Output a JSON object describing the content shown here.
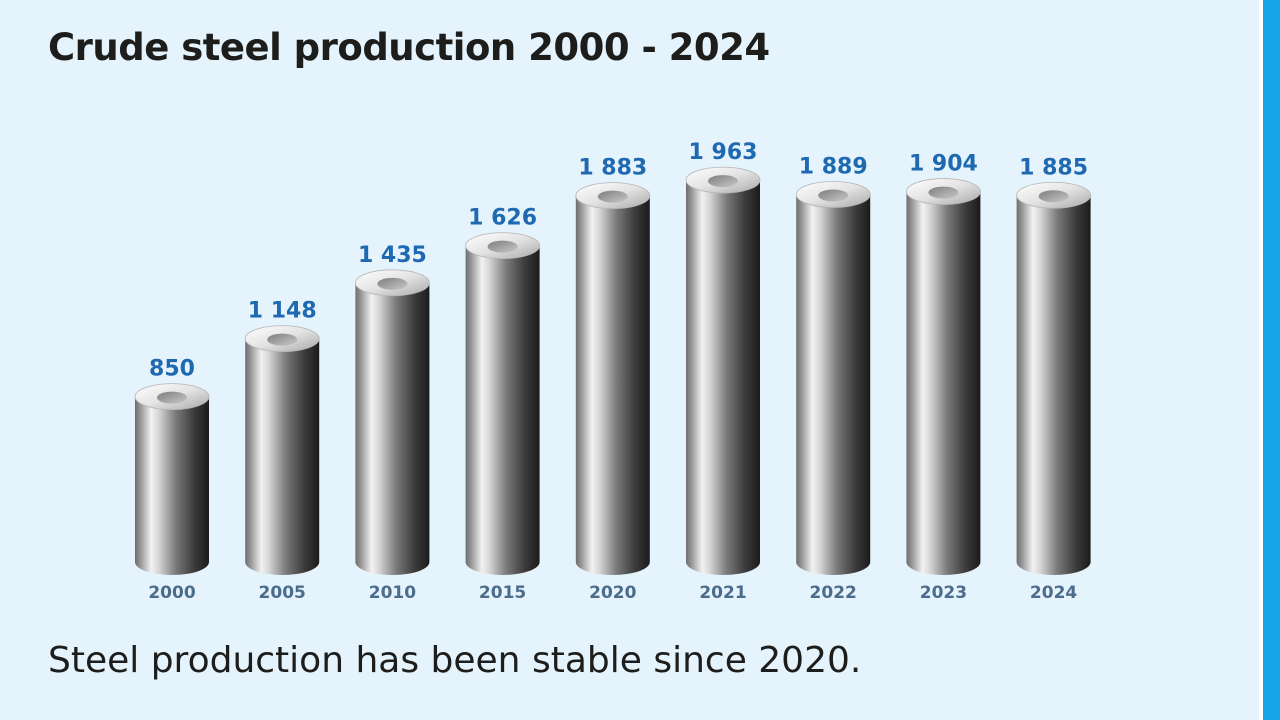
{
  "title": "Crude steel production 2000 - 2024",
  "caption": "Steel production has been stable since 2020.",
  "colors": {
    "background": "#e5f3fc",
    "accent_bar": "#16a4e8",
    "value_text": "#1f69b0",
    "year_text": "#4b6c8a"
  },
  "chart_data": {
    "type": "bar",
    "categories": [
      "2000",
      "2005",
      "2010",
      "2015",
      "2020",
      "2021",
      "2022",
      "2023",
      "2024"
    ],
    "values": [
      850,
      1148,
      1435,
      1626,
      1883,
      1963,
      1889,
      1904,
      1885
    ],
    "value_labels": [
      "850",
      "1 148",
      "1 435",
      "1 626",
      "1 883",
      "1 963",
      "1 889",
      "1 904",
      "1 885"
    ],
    "title": "Crude steel production 2000 - 2024",
    "xlabel": "",
    "ylabel": "",
    "ylim": [
      0,
      2200
    ],
    "grid": false,
    "legend": "none",
    "mark_style": "steel-pipe"
  }
}
